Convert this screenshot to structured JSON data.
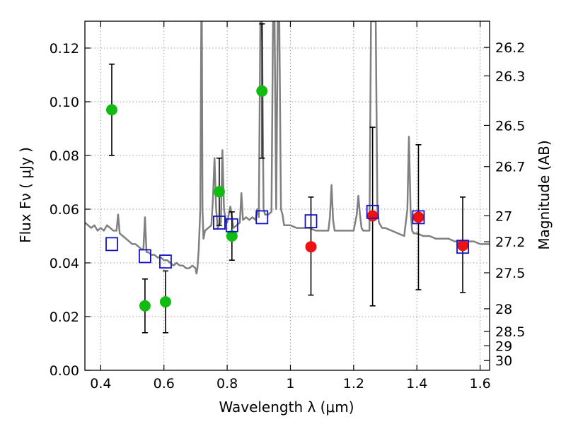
{
  "chart_data": {
    "type": "scatter",
    "xlabel": "Wavelength  λ (μm)",
    "ylabel_left": "Flux  Fν  ( μJy )",
    "ylabel_right": "Magnitude (AB)",
    "xlim": [
      0.35,
      1.63
    ],
    "ylim": [
      0.0,
      0.13
    ],
    "x_ticks": [
      0.4,
      0.6,
      0.8,
      1.0,
      1.2,
      1.4,
      1.6
    ],
    "x_tick_labels": [
      "0.4",
      "0.6",
      "0.8",
      "1",
      "1.2",
      "1.4",
      "1.6"
    ],
    "y_ticks": [
      0.0,
      0.02,
      0.04,
      0.06,
      0.08,
      0.1,
      0.12
    ],
    "y_tick_labels": [
      "0.00",
      "0.02",
      "0.04",
      "0.06",
      "0.08",
      "0.10",
      "0.12"
    ],
    "mag_ticks": [
      "26.2",
      "26.3",
      "26.5",
      "26.7",
      "27",
      "27.2",
      "27.5",
      "28",
      "28.5",
      "29",
      "30"
    ],
    "grid": true,
    "colors": {
      "model": "#808080",
      "green": "#11bb11",
      "red": "#ee1111",
      "box": "#1111cc",
      "error": "#000000",
      "grid": "#999999"
    },
    "series": [
      {
        "name": "green_photometry",
        "marker": "circle",
        "color": "#11bb11",
        "points": [
          {
            "x": 0.435,
            "y": 0.097,
            "ylo": 0.08,
            "yhi": 0.114
          },
          {
            "x": 0.54,
            "y": 0.024,
            "ylo": 0.014,
            "yhi": 0.034
          },
          {
            "x": 0.605,
            "y": 0.0255,
            "ylo": 0.014,
            "yhi": 0.037
          },
          {
            "x": 0.775,
            "y": 0.0665,
            "ylo": 0.054,
            "yhi": 0.079
          },
          {
            "x": 0.815,
            "y": 0.05,
            "ylo": 0.041,
            "yhi": 0.059
          },
          {
            "x": 0.91,
            "y": 0.104,
            "ylo": 0.079,
            "yhi": 0.129
          }
        ]
      },
      {
        "name": "red_photometry",
        "marker": "circle",
        "color": "#ee1111",
        "points": [
          {
            "x": 1.065,
            "y": 0.046,
            "ylo": 0.028,
            "yhi": 0.0645
          },
          {
            "x": 1.26,
            "y": 0.0575,
            "ylo": 0.024,
            "yhi": 0.0905
          },
          {
            "x": 1.405,
            "y": 0.057,
            "ylo": 0.03,
            "yhi": 0.084
          },
          {
            "x": 1.545,
            "y": 0.0465,
            "ylo": 0.029,
            "yhi": 0.0645
          }
        ]
      },
      {
        "name": "model_photometry",
        "marker": "square",
        "color": "#1111cc",
        "points": [
          {
            "x": 0.435,
            "y": 0.047
          },
          {
            "x": 0.54,
            "y": 0.0425
          },
          {
            "x": 0.605,
            "y": 0.0405
          },
          {
            "x": 0.775,
            "y": 0.055
          },
          {
            "x": 0.815,
            "y": 0.054
          },
          {
            "x": 0.91,
            "y": 0.057
          },
          {
            "x": 1.065,
            "y": 0.0555
          },
          {
            "x": 1.26,
            "y": 0.059
          },
          {
            "x": 1.405,
            "y": 0.057
          },
          {
            "x": 1.545,
            "y": 0.046
          }
        ]
      }
    ],
    "model_spectrum": {
      "name": "model_spectrum",
      "color": "#808080",
      "x": [
        0.35,
        0.36,
        0.37,
        0.38,
        0.39,
        0.4,
        0.41,
        0.42,
        0.43,
        0.44,
        0.445,
        0.45,
        0.455,
        0.46,
        0.47,
        0.48,
        0.49,
        0.5,
        0.51,
        0.52,
        0.53,
        0.535,
        0.54,
        0.545,
        0.55,
        0.56,
        0.57,
        0.58,
        0.59,
        0.6,
        0.61,
        0.62,
        0.63,
        0.64,
        0.65,
        0.66,
        0.67,
        0.68,
        0.69,
        0.7,
        0.703,
        0.706,
        0.71,
        0.715,
        0.718,
        0.72,
        0.722,
        0.725,
        0.73,
        0.74,
        0.75,
        0.755,
        0.76,
        0.765,
        0.77,
        0.78,
        0.785,
        0.79,
        0.795,
        0.8,
        0.805,
        0.81,
        0.815,
        0.82,
        0.83,
        0.84,
        0.845,
        0.85,
        0.86,
        0.87,
        0.88,
        0.89,
        0.895,
        0.9,
        0.905,
        0.91,
        0.915,
        0.92,
        0.93,
        0.94,
        0.945,
        0.95,
        0.955,
        0.96,
        0.965,
        0.97,
        0.975,
        0.98,
        1.0,
        1.02,
        1.04,
        1.06,
        1.08,
        1.1,
        1.12,
        1.125,
        1.13,
        1.135,
        1.14,
        1.16,
        1.18,
        1.2,
        1.21,
        1.215,
        1.22,
        1.225,
        1.23,
        1.24,
        1.25,
        1.255,
        1.26,
        1.265,
        1.27,
        1.275,
        1.28,
        1.29,
        1.3,
        1.32,
        1.34,
        1.36,
        1.37,
        1.375,
        1.38,
        1.385,
        1.39,
        1.4,
        1.42,
        1.44,
        1.46,
        1.48,
        1.5,
        1.52,
        1.54,
        1.56,
        1.58,
        1.6,
        1.62,
        1.63
      ],
      "y": [
        0.055,
        0.054,
        0.053,
        0.054,
        0.052,
        0.053,
        0.052,
        0.054,
        0.053,
        0.052,
        0.052,
        0.052,
        0.058,
        0.051,
        0.05,
        0.049,
        0.048,
        0.047,
        0.047,
        0.046,
        0.045,
        0.045,
        0.057,
        0.044,
        0.044,
        0.043,
        0.043,
        0.042,
        0.042,
        0.041,
        0.041,
        0.04,
        0.039,
        0.04,
        0.039,
        0.039,
        0.038,
        0.038,
        0.039,
        0.038,
        0.036,
        0.038,
        0.045,
        0.06,
        0.13,
        0.13,
        0.06,
        0.049,
        0.052,
        0.053,
        0.054,
        0.064,
        0.079,
        0.06,
        0.053,
        0.055,
        0.082,
        0.06,
        0.056,
        0.055,
        0.058,
        0.061,
        0.057,
        0.053,
        0.054,
        0.055,
        0.066,
        0.056,
        0.057,
        0.056,
        0.057,
        0.056,
        0.06,
        0.057,
        0.13,
        0.13,
        0.06,
        0.058,
        0.058,
        0.059,
        0.13,
        0.13,
        0.06,
        0.13,
        0.13,
        0.06,
        0.058,
        0.054,
        0.054,
        0.053,
        0.053,
        0.053,
        0.052,
        0.052,
        0.052,
        0.057,
        0.069,
        0.056,
        0.052,
        0.052,
        0.052,
        0.052,
        0.058,
        0.065,
        0.058,
        0.053,
        0.052,
        0.052,
        0.052,
        0.13,
        0.13,
        0.13,
        0.13,
        0.06,
        0.055,
        0.053,
        0.053,
        0.052,
        0.051,
        0.05,
        0.06,
        0.087,
        0.06,
        0.052,
        0.051,
        0.051,
        0.05,
        0.05,
        0.049,
        0.049,
        0.049,
        0.048,
        0.048,
        0.048,
        0.048,
        0.047,
        0.047,
        0.047
      ]
    }
  }
}
